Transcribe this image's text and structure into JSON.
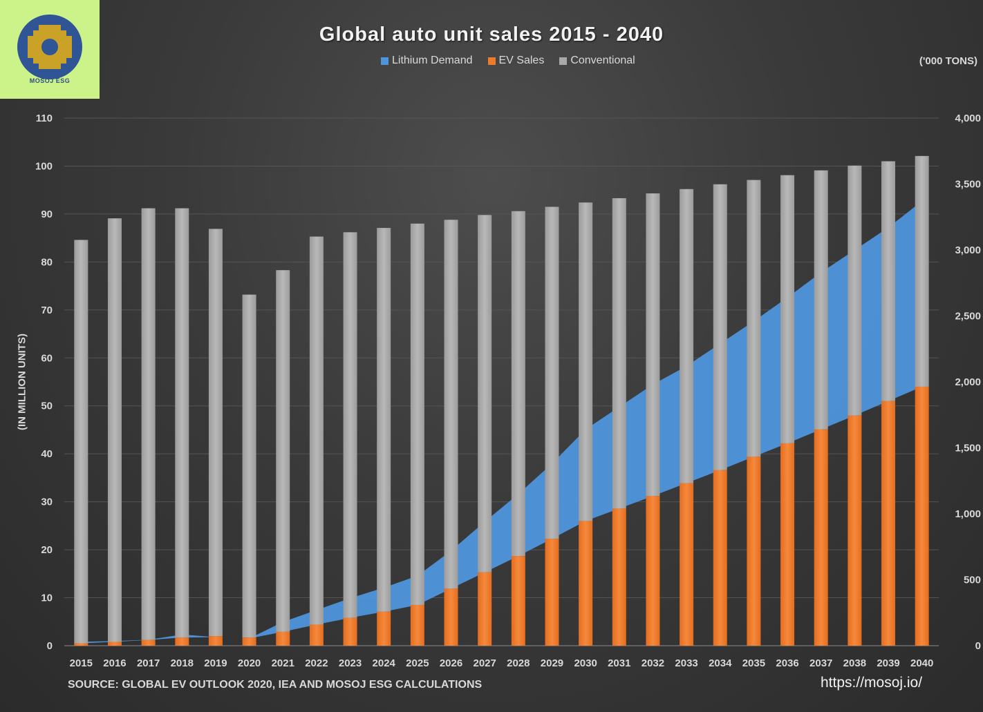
{
  "logo": {
    "text": "MOSOJ ESG"
  },
  "title": "Global auto unit sales 2015 - 2040",
  "right_axis_unit": "('000 TONS)",
  "left_axis_label": "(IN MILLION UNITS)",
  "source": "SOURCE: GLOBAL EV OUTLOOK 2020, IEA AND MOSOJ ESG CALCULATIONS",
  "url": "https://mosoj.io/",
  "colors": {
    "lithium": "#4f95dc",
    "ev": "#ee7a2c",
    "conventional": "#a9a9a9",
    "logo_blue": "#2f5597",
    "logo_gold": "#c9a227"
  },
  "chart_data": {
    "type": "bar",
    "stacked": true,
    "categories": [
      "2015",
      "2016",
      "2017",
      "2018",
      "2019",
      "2020",
      "2021",
      "2022",
      "2023",
      "2024",
      "2025",
      "2026",
      "2027",
      "2028",
      "2029",
      "2030",
      "2031",
      "2032",
      "2033",
      "2034",
      "2035",
      "2036",
      "2037",
      "2038",
      "2039",
      "2040"
    ],
    "series": [
      {
        "name": "Lithium Demand",
        "kind": "area",
        "axis": "right",
        "values": [
          30,
          35,
          45,
          85,
          65,
          55,
          180,
          270,
          360,
          440,
          530,
          720,
          940,
          1150,
          1380,
          1640,
          1810,
          1980,
          2120,
          2290,
          2460,
          2640,
          2830,
          3000,
          3170,
          3370
        ]
      },
      {
        "name": "EV Sales",
        "kind": "bar",
        "axis": "left",
        "values": [
          0.5,
          0.8,
          1.2,
          1.7,
          2.0,
          1.7,
          2.9,
          4.4,
          5.8,
          7.1,
          8.5,
          11.9,
          15.3,
          18.7,
          22.3,
          26.0,
          28.6,
          31.2,
          33.9,
          36.6,
          39.4,
          42.2,
          45.1,
          48.0,
          51.0,
          54.0
        ]
      },
      {
        "name": "Conventional",
        "kind": "bar",
        "axis": "left",
        "values": [
          84.1,
          88.3,
          90.0,
          89.5,
          84.9,
          71.5,
          75.4,
          80.9,
          80.4,
          80.0,
          79.5,
          76.9,
          74.5,
          71.9,
          69.2,
          66.4,
          64.7,
          63.1,
          61.3,
          59.6,
          57.7,
          55.9,
          54.0,
          52.1,
          50.0,
          48.1
        ]
      }
    ],
    "y_left": {
      "min": 0,
      "max": 110,
      "ticks": [
        0,
        10,
        20,
        30,
        40,
        50,
        60,
        70,
        80,
        90,
        100,
        110
      ]
    },
    "y_right": {
      "min": 0,
      "max": 4000,
      "ticks": [
        "0",
        "500",
        "1,000",
        "1,500",
        "2,000",
        "2,500",
        "3,000",
        "3,500",
        "4,000"
      ]
    },
    "grid": true,
    "legend_position": "top"
  }
}
